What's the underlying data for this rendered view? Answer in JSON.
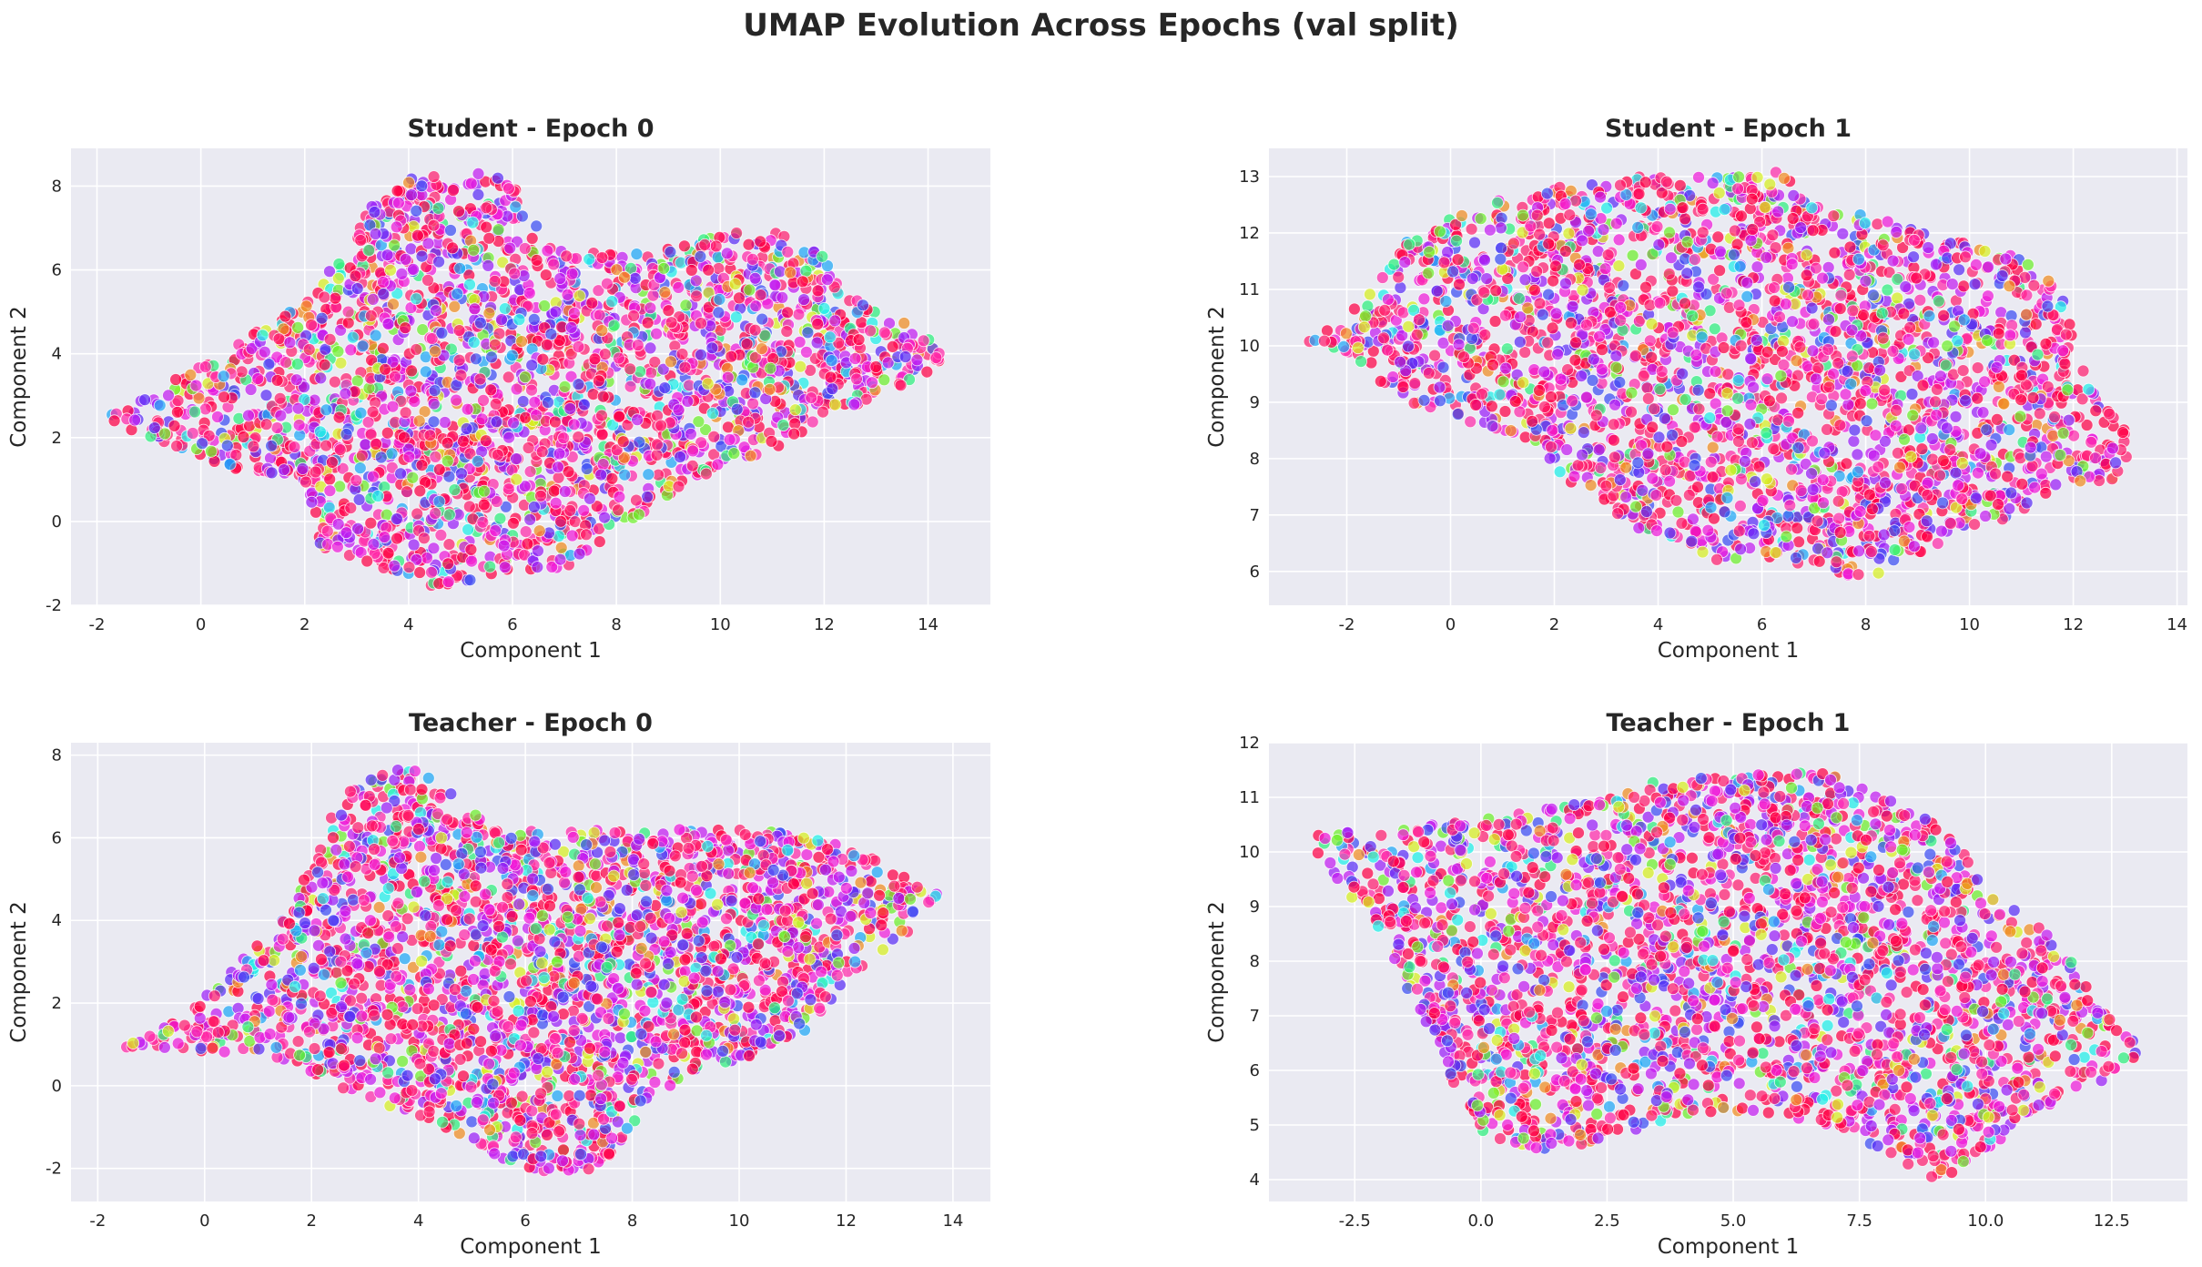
{
  "figure": {
    "title": "UMAP Evolution Across Epochs (val split)"
  },
  "palette": [
    "#ff0044",
    "#ff1f6e",
    "#ff2aa8",
    "#f01bd8",
    "#c31cf0",
    "#9a1ef6",
    "#5a2ef5",
    "#3b4df2",
    "#1fa8f5",
    "#1ff0e8",
    "#2cf07c",
    "#6cf02a",
    "#d7f01e",
    "#f08c1e"
  ],
  "chart_data": [
    {
      "type": "scatter",
      "title": "Student - Epoch 0",
      "xlabel": "Component 1",
      "ylabel": "Component 2",
      "xlim": [
        -2.5,
        15.2
      ],
      "ylim": [
        -2.0,
        8.9
      ],
      "xticks": [
        "-2",
        "0",
        "2",
        "4",
        "6",
        "8",
        "10",
        "12",
        "14"
      ],
      "xtick_values": [
        -2,
        0,
        2,
        4,
        6,
        8,
        10,
        12,
        14
      ],
      "yticks": [
        "-2",
        "0",
        "2",
        "4",
        "6",
        "8"
      ],
      "ytick_values": [
        -2,
        0,
        2,
        4,
        6,
        8
      ],
      "grid": true,
      "n_points_approx": 5000,
      "outline": [
        [
          -1.8,
          2.5
        ],
        [
          0.0,
          3.8
        ],
        [
          2.0,
          5.2
        ],
        [
          2.8,
          6.5
        ],
        [
          3.2,
          7.5
        ],
        [
          4.2,
          8.3
        ],
        [
          5.3,
          8.4
        ],
        [
          6.1,
          8.0
        ],
        [
          6.6,
          6.8
        ],
        [
          7.4,
          6.4
        ],
        [
          9.0,
          6.5
        ],
        [
          10.4,
          7.0
        ],
        [
          11.3,
          6.9
        ],
        [
          12.0,
          6.3
        ],
        [
          12.3,
          5.6
        ],
        [
          13.2,
          5.0
        ],
        [
          14.3,
          4.2
        ],
        [
          14.3,
          3.7
        ],
        [
          13.2,
          3.1
        ],
        [
          12.3,
          2.6
        ],
        [
          11.2,
          1.8
        ],
        [
          10.0,
          1.3
        ],
        [
          9.0,
          0.6
        ],
        [
          8.0,
          -0.3
        ],
        [
          7.0,
          -1.1
        ],
        [
          5.8,
          -1.2
        ],
        [
          4.6,
          -1.6
        ],
        [
          3.5,
          -1.1
        ],
        [
          2.3,
          -0.6
        ],
        [
          2.2,
          0.3
        ],
        [
          1.6,
          1.0
        ],
        [
          0.5,
          1.3
        ],
        [
          -0.3,
          1.7
        ],
        [
          -1.4,
          2.2
        ]
      ]
    },
    {
      "type": "scatter",
      "title": "Student - Epoch 1",
      "xlabel": "Component 1",
      "ylabel": "Component 2",
      "xlim": [
        -3.5,
        14.2
      ],
      "ylim": [
        5.4,
        13.5
      ],
      "xticks": [
        "-2",
        "0",
        "2",
        "4",
        "6",
        "8",
        "10",
        "12",
        "14"
      ],
      "xtick_values": [
        -2,
        0,
        2,
        4,
        6,
        8,
        10,
        12,
        14
      ],
      "yticks": [
        "6",
        "7",
        "8",
        "9",
        "10",
        "11",
        "12",
        "13"
      ],
      "ytick_values": [
        6,
        7,
        8,
        9,
        10,
        11,
        12,
        13
      ],
      "grid": true,
      "n_points_approx": 5000,
      "outline": [
        [
          -2.8,
          10.1
        ],
        [
          -1.8,
          10.7
        ],
        [
          -1.0,
          11.8
        ],
        [
          0.5,
          12.5
        ],
        [
          2.0,
          12.8
        ],
        [
          3.5,
          13.0
        ],
        [
          5.0,
          13.0
        ],
        [
          6.3,
          13.1
        ],
        [
          7.0,
          12.6
        ],
        [
          8.5,
          12.2
        ],
        [
          10.0,
          11.8
        ],
        [
          11.3,
          11.5
        ],
        [
          11.8,
          10.8
        ],
        [
          12.3,
          9.3
        ],
        [
          13.2,
          8.3
        ],
        [
          13.1,
          7.6
        ],
        [
          12.0,
          7.6
        ],
        [
          11.0,
          7.0
        ],
        [
          10.0,
          6.8
        ],
        [
          9.0,
          6.3
        ],
        [
          8.0,
          5.8
        ],
        [
          7.0,
          6.0
        ],
        [
          6.0,
          6.2
        ],
        [
          5.0,
          6.2
        ],
        [
          4.5,
          6.5
        ],
        [
          3.5,
          6.8
        ],
        [
          2.5,
          7.4
        ],
        [
          1.5,
          8.3
        ],
        [
          0.5,
          8.6
        ],
        [
          -0.8,
          9.0
        ],
        [
          -1.8,
          9.6
        ]
      ]
    },
    {
      "type": "scatter",
      "title": "Teacher - Epoch 0",
      "xlabel": "Component 1",
      "ylabel": "Component 2",
      "xlim": [
        -2.5,
        14.7
      ],
      "ylim": [
        -2.8,
        8.3
      ],
      "xticks": [
        "-2",
        "0",
        "2",
        "4",
        "6",
        "8",
        "10",
        "12",
        "14"
      ],
      "xtick_values": [
        -2,
        0,
        2,
        4,
        6,
        8,
        10,
        12,
        14
      ],
      "yticks": [
        "-2",
        "0",
        "2",
        "4",
        "6",
        "8"
      ],
      "ytick_values": [
        -2,
        0,
        2,
        4,
        6,
        8
      ],
      "grid": true,
      "n_points_approx": 5000,
      "outline": [
        [
          -1.7,
          0.9
        ],
        [
          -0.6,
          1.5
        ],
        [
          0.3,
          2.6
        ],
        [
          1.3,
          3.8
        ],
        [
          1.8,
          4.8
        ],
        [
          2.2,
          6.2
        ],
        [
          2.8,
          7.3
        ],
        [
          3.8,
          7.9
        ],
        [
          4.5,
          7.2
        ],
        [
          5.4,
          6.2
        ],
        [
          7.0,
          6.2
        ],
        [
          9.0,
          6.2
        ],
        [
          10.5,
          6.2
        ],
        [
          11.5,
          6.0
        ],
        [
          12.5,
          5.5
        ],
        [
          13.4,
          4.9
        ],
        [
          13.9,
          4.5
        ],
        [
          13.3,
          3.8
        ],
        [
          12.2,
          2.8
        ],
        [
          11.2,
          1.3
        ],
        [
          10.2,
          0.7
        ],
        [
          9.2,
          0.4
        ],
        [
          8.2,
          -0.6
        ],
        [
          7.4,
          -2.0
        ],
        [
          6.2,
          -2.2
        ],
        [
          5.2,
          -1.5
        ],
        [
          4.2,
          -0.8
        ],
        [
          3.0,
          -0.3
        ],
        [
          2.0,
          0.3
        ],
        [
          1.0,
          0.8
        ],
        [
          0.0,
          0.8
        ],
        [
          -1.0,
          0.9
        ]
      ]
    },
    {
      "type": "scatter",
      "title": "Teacher - Epoch 1",
      "xlabel": "Component 1",
      "ylabel": "Component 2",
      "xlim": [
        -4.2,
        14.0
      ],
      "ylim": [
        3.6,
        12.0
      ],
      "xticks": [
        "-2.5",
        "0.0",
        "2.5",
        "5.0",
        "7.5",
        "10.0",
        "12.5"
      ],
      "xtick_values": [
        -2.5,
        0.0,
        2.5,
        5.0,
        7.5,
        10.0,
        12.5
      ],
      "yticks": [
        "4",
        "5",
        "6",
        "7",
        "8",
        "9",
        "10",
        "11",
        "12"
      ],
      "ytick_values": [
        4,
        5,
        6,
        7,
        8,
        9,
        10,
        11,
        12
      ],
      "grid": true,
      "n_points_approx": 5000,
      "outline": [
        [
          -3.5,
          10.3
        ],
        [
          -2.0,
          10.4
        ],
        [
          0.0,
          10.6
        ],
        [
          2.0,
          10.9
        ],
        [
          3.5,
          11.3
        ],
        [
          5.0,
          11.4
        ],
        [
          6.5,
          11.6
        ],
        [
          7.5,
          11.2
        ],
        [
          8.5,
          10.8
        ],
        [
          9.5,
          10.2
        ],
        [
          10.0,
          9.4
        ],
        [
          10.8,
          8.8
        ],
        [
          11.6,
          8.2
        ],
        [
          12.2,
          7.2
        ],
        [
          13.0,
          6.5
        ],
        [
          13.0,
          6.0
        ],
        [
          12.0,
          5.7
        ],
        [
          11.0,
          5.2
        ],
        [
          10.0,
          4.5
        ],
        [
          9.0,
          3.9
        ],
        [
          8.0,
          4.5
        ],
        [
          7.0,
          5.0
        ],
        [
          5.5,
          5.2
        ],
        [
          4.0,
          5.2
        ],
        [
          2.5,
          4.7
        ],
        [
          1.0,
          4.5
        ],
        [
          0.0,
          4.9
        ],
        [
          -0.6,
          5.8
        ],
        [
          -1.2,
          7.0
        ],
        [
          -2.0,
          8.5
        ],
        [
          -3.0,
          9.6
        ]
      ]
    }
  ]
}
